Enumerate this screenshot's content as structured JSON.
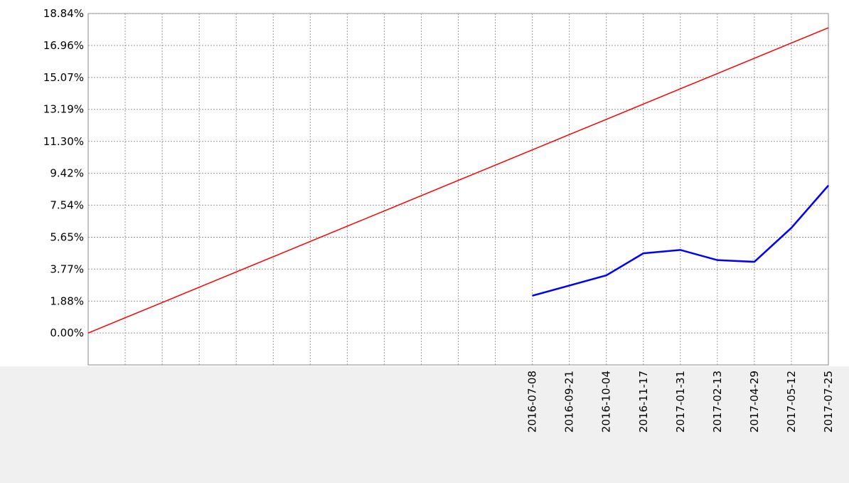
{
  "chart_data": {
    "type": "line",
    "categories": [
      null,
      null,
      null,
      null,
      null,
      null,
      null,
      null,
      null,
      null,
      null,
      null,
      "2016-07-08",
      "2016-09-21",
      "2016-10-04",
      "2016-11-17",
      "2017-01-31",
      "2017-02-13",
      "2017-04-29",
      "2017-05-12",
      "2017-07-25"
    ],
    "series": [
      {
        "color": "#ff0000",
        "values": [
          0,
          0.9,
          1.8,
          2.7,
          3.6,
          4.5,
          5.4,
          6.3,
          7.2,
          8.1,
          9.0,
          9.9,
          10.8,
          11.7,
          12.6,
          13.5,
          14.4,
          15.3,
          16.2,
          17.1,
          18.0
        ]
      },
      {
        "color": "#0000ff",
        "values": [
          null,
          null,
          null,
          null,
          null,
          null,
          null,
          null,
          null,
          null,
          null,
          null,
          2.2,
          2.8,
          3.4,
          4.7,
          4.9,
          4.3,
          4.2,
          6.2,
          8.7
        ]
      }
    ],
    "ylim": [
      -1.88,
      18.84
    ],
    "yticks": [
      {
        "value": 0,
        "label": "0.00%"
      },
      {
        "value": 1.88,
        "label": "1.88%"
      },
      {
        "value": 3.77,
        "label": "3.77%"
      },
      {
        "value": 5.65,
        "label": "5.65%"
      },
      {
        "value": 7.54,
        "label": "7.54%"
      },
      {
        "value": 9.42,
        "label": "9.42%"
      },
      {
        "value": 11.3,
        "label": "11.30%"
      },
      {
        "value": 13.19,
        "label": "13.19%"
      },
      {
        "value": 15.07,
        "label": "15.07%"
      },
      {
        "value": 16.96,
        "label": "16.96%"
      },
      {
        "value": 18.84,
        "label": "18.84%"
      }
    ],
    "grid": true
  }
}
